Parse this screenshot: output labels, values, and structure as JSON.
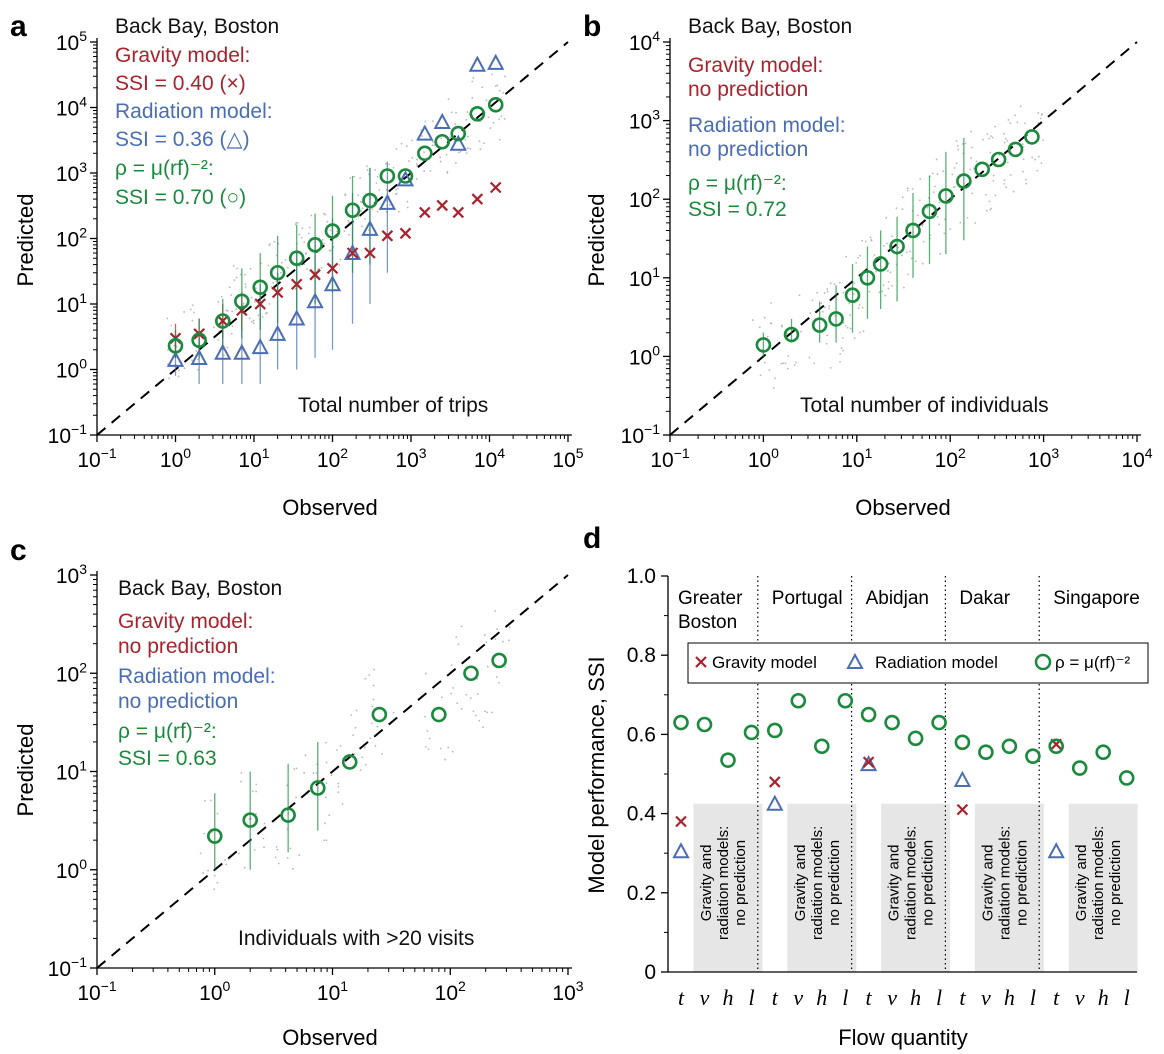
{
  "colors": {
    "gravity": "#a8232d",
    "radiation": "#4a6db5",
    "model": "#1b8a3e",
    "scatter": "#b8b8b8",
    "shade": "#e6e6e6"
  },
  "panels": {
    "a": {
      "letter": "a",
      "location": "Back Bay, Boston",
      "gravity_title": "Gravity model:",
      "gravity_ssi": "SSI = 0.40  (×)",
      "radiation_title": "Radiation model:",
      "radiation_ssi": "SSI = 0.36  (△)",
      "model_formula": "ρ = μ(rf)⁻²:",
      "model_ssi": "SSI = 0.70  (○)",
      "caption": "Total number of trips",
      "xlabel": "Observed",
      "ylabel": "Predicted"
    },
    "b": {
      "letter": "b",
      "location": "Back Bay, Boston",
      "gravity_title": "Gravity model:",
      "gravity_ssi": "no prediction",
      "radiation_title": "Radiation model:",
      "radiation_ssi": "no prediction",
      "model_formula": "ρ = μ(rf)⁻²:",
      "model_ssi": "SSI = 0.72",
      "caption": "Total number of individuals",
      "xlabel": "Observed",
      "ylabel": "Predicted"
    },
    "c": {
      "letter": "c",
      "location": "Back Bay, Boston",
      "gravity_title": "Gravity model:",
      "gravity_ssi": "no prediction",
      "radiation_title": "Radiation model:",
      "radiation_ssi": "no prediction",
      "model_formula": "ρ = μ(rf)⁻²:",
      "model_ssi": "SSI = 0.63",
      "caption": "Individuals with >20 visits",
      "xlabel": "Observed",
      "ylabel": "Predicted"
    },
    "d": {
      "letter": "d",
      "regions": [
        [
          "Greater",
          "Boston"
        ],
        [
          "Portugal"
        ],
        [
          "Abidjan"
        ],
        [
          "Dakar"
        ],
        [
          "Singapore"
        ]
      ],
      "legend": {
        "gravity": "Gravity model",
        "radiation": "Radiation model",
        "model": "ρ = μ(rf)⁻²"
      },
      "no_prediction": [
        "Gravity and",
        "radiation models:",
        "no prediction"
      ],
      "xlabel": "Flow quantity",
      "ylabel": "Model performance, SSI"
    }
  },
  "chart_data": [
    {
      "id": "a",
      "type": "scatter",
      "xscale": "log",
      "yscale": "log",
      "xlim": [
        0.1,
        100000
      ],
      "ylim": [
        0.1,
        100000
      ],
      "x_tick_labels": [
        "10⁻¹",
        "10⁰",
        "10¹",
        "10²",
        "10³",
        "10⁴",
        "10⁵"
      ],
      "y_tick_labels": [
        "10⁻¹",
        "10⁰",
        "10¹",
        "10²",
        "10³",
        "10⁴",
        "10⁵"
      ],
      "series": [
        {
          "key": "model",
          "marker": "circle",
          "x": [
            1,
            2,
            4,
            7,
            12,
            20,
            35,
            60,
            100,
            180,
            300,
            500,
            850,
            1500,
            2500,
            4000,
            7000,
            12000
          ],
          "y": [
            2.3,
            2.8,
            5.5,
            11,
            18,
            30,
            50,
            80,
            130,
            270,
            380,
            900,
            900,
            2000,
            3000,
            4000,
            8000,
            11000
          ],
          "err": [
            [
              1.5,
              4
            ],
            [
              1.5,
              6
            ],
            [
              2,
              12
            ],
            [
              3,
              35
            ],
            [
              4,
              60
            ],
            [
              5,
              110
            ],
            [
              8,
              160
            ],
            [
              10,
              240
            ],
            [
              15,
              450
            ],
            [
              30,
              900
            ],
            [
              40,
              1200
            ]
          ]
        },
        {
          "key": "gravity",
          "marker": "x",
          "x": [
            1,
            2,
            4,
            7,
            12,
            20,
            35,
            60,
            100,
            180,
            300,
            500,
            850,
            1500,
            2500,
            4000,
            7000,
            12000
          ],
          "y": [
            3,
            3.5,
            5.5,
            8,
            10,
            15,
            20,
            28,
            35,
            60,
            60,
            110,
            120,
            250,
            320,
            250,
            400,
            600
          ],
          "err": [
            [
              1.5,
              5
            ],
            [
              2,
              6
            ],
            [
              3,
              10
            ],
            [
              4,
              15
            ]
          ]
        },
        {
          "key": "radiation",
          "marker": "triangle",
          "x": [
            1,
            2,
            4,
            7,
            12,
            20,
            35,
            60,
            100,
            180,
            300,
            500,
            850,
            1500,
            2500,
            4000,
            7000,
            12000
          ],
          "y": [
            1.4,
            1.5,
            1.8,
            1.8,
            2.2,
            3.5,
            6,
            11,
            20,
            60,
            140,
            350,
            800,
            4000,
            6000,
            2800,
            45000,
            48000
          ],
          "err": [
            [
              0.8,
              3
            ],
            [
              0.6,
              3
            ],
            [
              0.6,
              5
            ],
            [
              0.6,
              10
            ],
            [
              0.6,
              20
            ],
            [
              1,
              30
            ],
            [
              1,
              60
            ],
            [
              1.5,
              100
            ],
            [
              2,
              200
            ],
            [
              5,
              500
            ],
            [
              10,
              1200
            ],
            [
              30,
              1500
            ]
          ]
        }
      ]
    },
    {
      "id": "b",
      "type": "scatter",
      "xscale": "log",
      "yscale": "log",
      "xlim": [
        0.1,
        10000
      ],
      "ylim": [
        0.1,
        10000
      ],
      "x_tick_labels": [
        "10⁻¹",
        "10⁰",
        "10¹",
        "10²",
        "10³",
        "10⁴"
      ],
      "y_tick_labels": [
        "10⁻¹",
        "10⁰",
        "10¹",
        "10²",
        "10³",
        "10⁴"
      ],
      "series": [
        {
          "key": "model",
          "marker": "circle",
          "x": [
            1,
            2,
            4,
            6,
            9,
            13,
            18,
            27,
            40,
            60,
            90,
            140,
            220,
            330,
            500,
            750
          ],
          "y": [
            1.4,
            1.9,
            2.5,
            3,
            6,
            10,
            15,
            25,
            40,
            70,
            110,
            170,
            240,
            320,
            430,
            620
          ],
          "err": [
            [
              1,
              2
            ],
            [
              1.5,
              3
            ],
            [
              1.5,
              5
            ],
            [
              1.5,
              8
            ],
            [
              2,
              15
            ],
            [
              3,
              25
            ],
            [
              4,
              40
            ],
            [
              5,
              60
            ],
            [
              10,
              120
            ],
            [
              15,
              200
            ],
            [
              20,
              400
            ],
            [
              30,
              600
            ]
          ]
        }
      ]
    },
    {
      "id": "c",
      "type": "scatter",
      "xscale": "log",
      "yscale": "log",
      "xlim": [
        0.1,
        1000
      ],
      "ylim": [
        0.1,
        1000
      ],
      "x_tick_labels": [
        "10⁻¹",
        "10⁰",
        "10¹",
        "10²",
        "10³"
      ],
      "y_tick_labels": [
        "10⁻¹",
        "10⁰",
        "10¹",
        "10²",
        "10³"
      ],
      "series": [
        {
          "key": "model",
          "marker": "circle",
          "x": [
            1,
            2,
            4.2,
            7.5,
            14,
            25,
            80,
            150,
            260
          ],
          "y": [
            2.2,
            3.2,
            3.6,
            6.8,
            12.5,
            38,
            38,
            100,
            135
          ],
          "err": [
            [
              1,
              6
            ],
            [
              1,
              10
            ],
            [
              1.5,
              12
            ],
            [
              2.5,
              20
            ]
          ]
        }
      ]
    },
    {
      "id": "d",
      "type": "scatter",
      "ylim": [
        0,
        1.0
      ],
      "y_ticks": [
        0,
        0.2,
        0.4,
        0.6,
        0.8,
        1.0
      ],
      "y_tick_labels": [
        "0",
        "0.2",
        "0.4",
        "0.6",
        "0.8",
        "1.0"
      ],
      "categories": [
        "t",
        "v",
        "h",
        "l",
        "t",
        "v",
        "h",
        "l",
        "t",
        "v",
        "h",
        "l",
        "t",
        "v",
        "h",
        "l",
        "t",
        "v",
        "h",
        "l"
      ],
      "series": [
        {
          "key": "model",
          "marker": "circle",
          "values": [
            0.63,
            0.625,
            0.535,
            0.605,
            0.61,
            0.685,
            0.57,
            0.685,
            0.65,
            0.63,
            0.59,
            0.63,
            0.58,
            0.555,
            0.57,
            0.545,
            0.57,
            0.515,
            0.555,
            0.49
          ]
        },
        {
          "key": "gravity",
          "marker": "x",
          "values": [
            0.38,
            null,
            null,
            null,
            0.48,
            null,
            null,
            null,
            0.53,
            null,
            null,
            null,
            0.41,
            null,
            null,
            null,
            0.575,
            null,
            null,
            null
          ]
        },
        {
          "key": "radiation",
          "marker": "triangle",
          "values": [
            0.305,
            null,
            null,
            null,
            0.425,
            null,
            null,
            null,
            0.525,
            null,
            null,
            null,
            0.485,
            null,
            null,
            null,
            0.305,
            null,
            null,
            null
          ]
        }
      ]
    }
  ]
}
